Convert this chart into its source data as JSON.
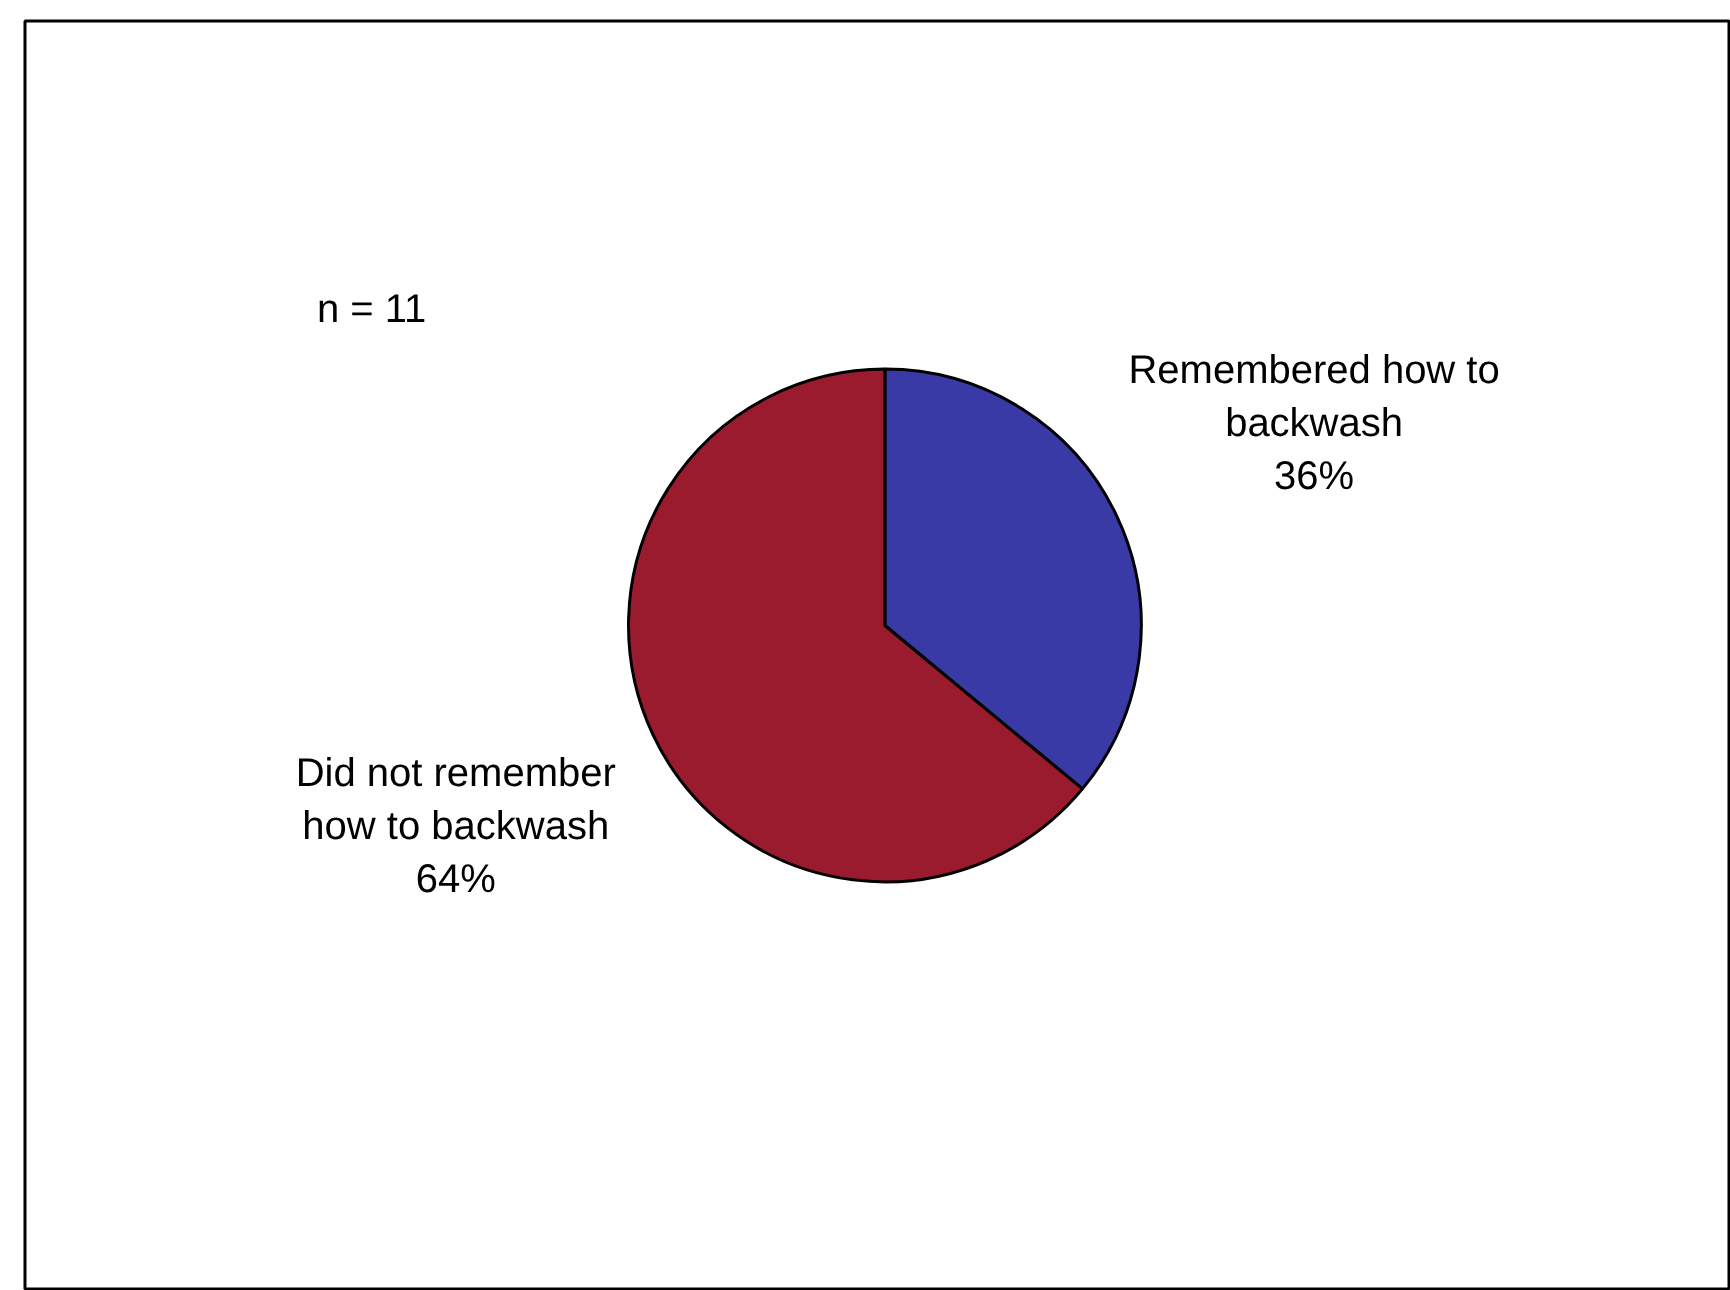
{
  "chart_data": {
    "type": "pie",
    "categories": [
      "Remembered how to backwash",
      "Did not remember how to backwash"
    ],
    "values": [
      36,
      64
    ],
    "colors": [
      "#3a3aa6",
      "#9a1b2e"
    ],
    "value_labels": [
      "36%",
      "64%"
    ],
    "annotations": [
      "n = 11"
    ]
  }
}
